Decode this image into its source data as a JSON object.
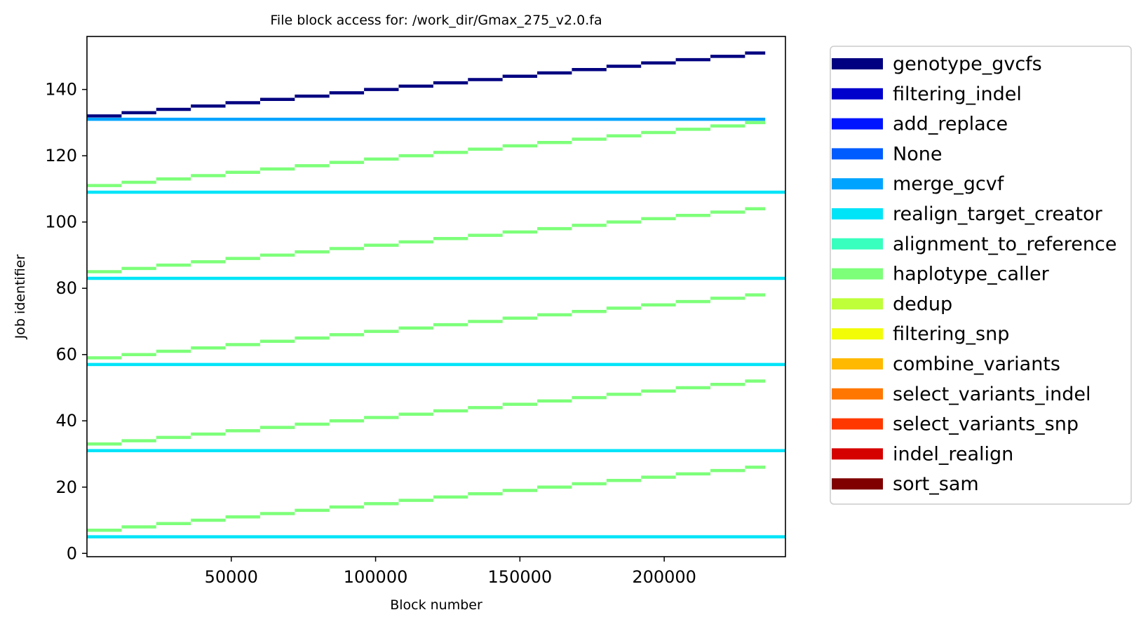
{
  "chart_data": {
    "type": "line",
    "title": "File block access for: /work_dir/Gmax_275_v2.0.fa",
    "xlabel": "Block number",
    "ylabel": "Job identifier",
    "xlim": [
      0,
      242000
    ],
    "ylim": [
      -1,
      156
    ],
    "xticks": [
      50000,
      100000,
      150000,
      200000
    ],
    "yticks": [
      0,
      20,
      40,
      60,
      80,
      100,
      120,
      140
    ],
    "grid": false,
    "legend_position": "outside-right",
    "legend": [
      {
        "name": "genotype_gvcfs",
        "color": "#000080"
      },
      {
        "name": "filtering_indel",
        "color": "#0000cd"
      },
      {
        "name": "add_replace",
        "color": "#0014ff"
      },
      {
        "name": "None",
        "color": "#005cff"
      },
      {
        "name": "merge_gcvf",
        "color": "#00a4ff"
      },
      {
        "name": "realign_target_creator",
        "color": "#00e4f8"
      },
      {
        "name": "alignment_to_reference",
        "color": "#39ffbe"
      },
      {
        "name": "haplotype_caller",
        "color": "#7dff7a"
      },
      {
        "name": "dedup",
        "color": "#beff39"
      },
      {
        "name": "filtering_snp",
        "color": "#f1fc06"
      },
      {
        "name": "combine_variants",
        "color": "#ffb900"
      },
      {
        "name": "select_variants_indel",
        "color": "#ff7700"
      },
      {
        "name": "select_variants_snp",
        "color": "#ff3800"
      },
      {
        "name": "indel_realign",
        "color": "#d50000"
      },
      {
        "name": "sort_sam",
        "color": "#800000"
      }
    ],
    "x_block_range": [
      0,
      235000
    ],
    "step_block_size": 12000,
    "series": [
      {
        "name": "genotype_gvcfs",
        "type": "staircase",
        "job_start": 132,
        "job_end": 151
      },
      {
        "name": "merge_gcvf",
        "type": "constant",
        "job": 131
      },
      {
        "name": "haplotype_caller",
        "type": "staircase",
        "job_start": 111,
        "job_end": 130
      },
      {
        "name": "haplotype_caller",
        "type": "staircase",
        "job_start": 85,
        "job_end": 104
      },
      {
        "name": "haplotype_caller",
        "type": "staircase",
        "job_start": 59,
        "job_end": 78
      },
      {
        "name": "haplotype_caller",
        "type": "staircase",
        "job_start": 33,
        "job_end": 52
      },
      {
        "name": "haplotype_caller",
        "type": "staircase",
        "job_start": 7,
        "job_end": 26
      },
      {
        "name": "realign_target_creator",
        "type": "constant",
        "job": 109,
        "x_end": 242000
      },
      {
        "name": "realign_target_creator",
        "type": "constant",
        "job": 83,
        "x_end": 242000
      },
      {
        "name": "realign_target_creator",
        "type": "constant",
        "job": 57,
        "x_end": 242000
      },
      {
        "name": "realign_target_creator",
        "type": "constant",
        "job": 31,
        "x_end": 242000
      },
      {
        "name": "realign_target_creator",
        "type": "constant",
        "job": 5,
        "x_end": 242000
      }
    ]
  }
}
